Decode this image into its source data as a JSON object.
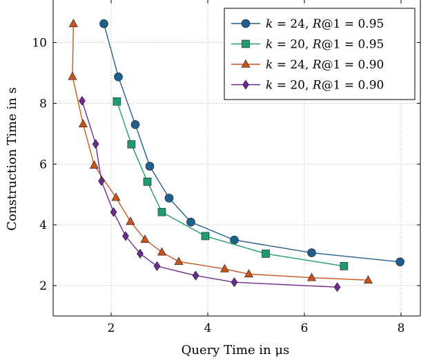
{
  "chart_data": {
    "type": "line",
    "title": "",
    "xlabel": "Query Time in μs",
    "ylabel": "Construction Time in s",
    "xlim": [
      0.8,
      8.4
    ],
    "ylim": [
      1.0,
      11.4
    ],
    "xticks": [
      2,
      4,
      6,
      8
    ],
    "yticks": [
      2,
      4,
      6,
      8,
      10
    ],
    "xtick_labels": [
      "2",
      "4",
      "6",
      "8"
    ],
    "ytick_labels": [
      "2",
      "4",
      "6",
      "8",
      "10"
    ],
    "grid": true,
    "legend_position": "top-right",
    "series": [
      {
        "name": "k = 24, R@1 = 0.95",
        "legend": {
          "k": "k",
          "k_val": " = 24, ",
          "r": "R",
          "r_val": "@1 = 0.95"
        },
        "color": "#1f5f8b",
        "marker": "circle",
        "x": [
          1.85,
          2.15,
          2.5,
          2.8,
          3.2,
          3.65,
          4.55,
          6.15,
          7.98
        ],
        "y": [
          10.62,
          8.87,
          7.3,
          5.93,
          4.88,
          4.09,
          3.5,
          3.08,
          2.78
        ]
      },
      {
        "name": "k = 20, R@1 = 0.95",
        "legend": {
          "k": "k",
          "k_val": " = 20, ",
          "r": "R",
          "r_val": "@1 = 0.95"
        },
        "color": "#1f9c6f",
        "marker": "square",
        "x": [
          2.12,
          2.42,
          2.75,
          3.05,
          3.95,
          5.2,
          6.82
        ],
        "y": [
          8.06,
          6.65,
          5.42,
          4.42,
          3.63,
          3.05,
          2.64
        ]
      },
      {
        "name": "k = 24, R@1 = 0.90",
        "legend": {
          "k": "k",
          "k_val": " = 24, ",
          "r": "R",
          "r_val": "@1 = 0.90"
        },
        "color": "#c9541a",
        "marker": "triangle",
        "x": [
          1.22,
          1.2,
          1.42,
          1.65,
          2.1,
          2.4,
          2.7,
          3.05,
          3.4,
          4.35,
          4.85,
          6.15,
          7.32
        ],
        "y": [
          10.62,
          8.88,
          7.32,
          5.96,
          4.9,
          4.11,
          3.52,
          3.1,
          2.79,
          2.55,
          2.38,
          2.26,
          2.18
        ]
      },
      {
        "name": "k = 20, R@1 = 0.90",
        "legend": {
          "k": "k",
          "k_val": " = 20, ",
          "r": "R",
          "r_val": "@1 = 0.90"
        },
        "color": "#6a2c8f",
        "marker": "diamond",
        "x": [
          1.4,
          1.68,
          1.8,
          2.05,
          2.3,
          2.6,
          2.95,
          3.75,
          4.55,
          6.68
        ],
        "y": [
          8.08,
          6.66,
          5.44,
          4.42,
          3.63,
          3.05,
          2.64,
          2.33,
          2.11,
          1.95
        ]
      }
    ]
  }
}
